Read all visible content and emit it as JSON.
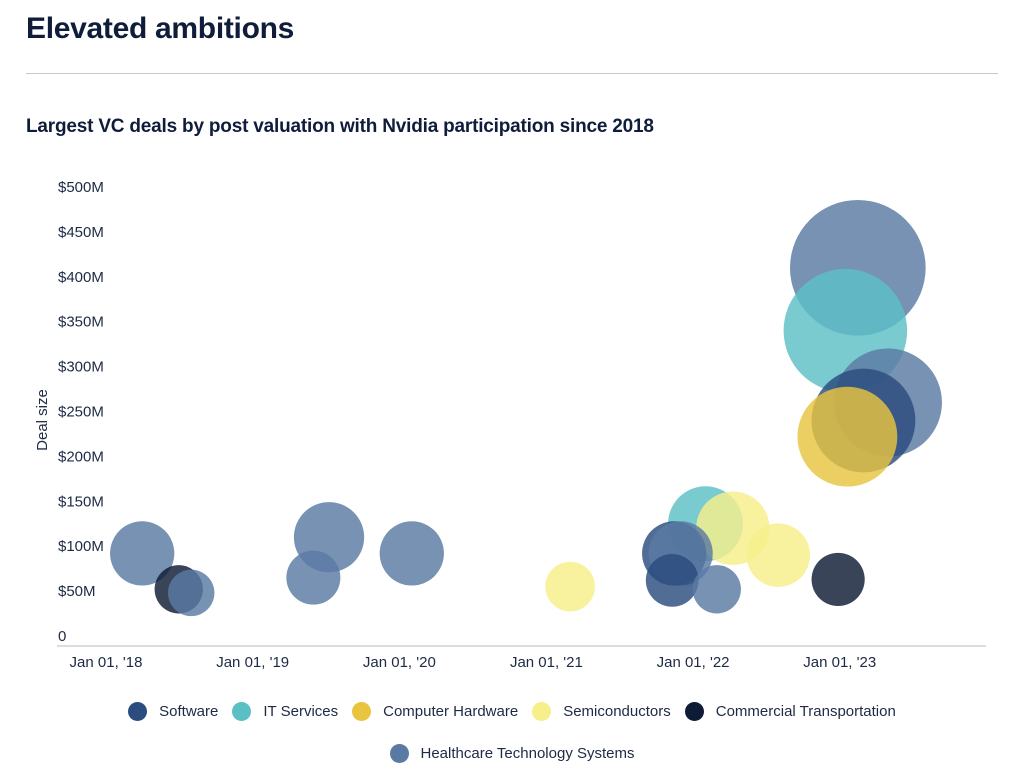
{
  "header": {
    "title": "Elevated ambitions"
  },
  "chart_data": {
    "type": "scatter",
    "subtitle": "Largest VC deals by post valuation with Nvidia participation since 2018",
    "ylabel": "Deal size",
    "xlabel": "",
    "ylim": [
      0,
      500
    ],
    "y_ticks": [
      {
        "value": 0,
        "label": "0"
      },
      {
        "value": 50,
        "label": "$50M"
      },
      {
        "value": 100,
        "label": "$100M"
      },
      {
        "value": 150,
        "label": "$150M"
      },
      {
        "value": 200,
        "label": "$200M"
      },
      {
        "value": 250,
        "label": "$250M"
      },
      {
        "value": 300,
        "label": "$300M"
      },
      {
        "value": 350,
        "label": "$350M"
      },
      {
        "value": 400,
        "label": "$400M"
      },
      {
        "value": 450,
        "label": "$450M"
      },
      {
        "value": 500,
        "label": "$500M"
      }
    ],
    "x_range": [
      "2017-09-01",
      "2023-12-31"
    ],
    "x_ticks": [
      {
        "value": "2018-01-01",
        "label": "Jan 01, '18"
      },
      {
        "value": "2019-01-01",
        "label": "Jan 01, '19"
      },
      {
        "value": "2020-01-01",
        "label": "Jan 01, '20"
      },
      {
        "value": "2021-01-01",
        "label": "Jan 01, '21"
      },
      {
        "value": "2022-01-01",
        "label": "Jan 01, '22"
      },
      {
        "value": "2023-01-01",
        "label": "Jan 01, '23"
      }
    ],
    "grid": false,
    "legend_position": "bottom",
    "series": [
      {
        "name": "Software",
        "color": "#2b4c7e",
        "points": [
          {
            "x": "2021-11-15",
            "y": 92
          },
          {
            "x": "2021-11-10",
            "y": 62
          },
          {
            "x": "2023-03-01",
            "y": 240
          }
        ]
      },
      {
        "name": "IT Services",
        "color": "#5bc0c6",
        "points": [
          {
            "x": "2022-02-01",
            "y": 125
          },
          {
            "x": "2023-01-15",
            "y": 340
          }
        ]
      },
      {
        "name": "Computer Hardware",
        "color": "#e8c43f",
        "points": [
          {
            "x": "2023-01-20",
            "y": 222
          }
        ]
      },
      {
        "name": "Semiconductors",
        "color": "#f6ef8a",
        "points": [
          {
            "x": "2021-03-01",
            "y": 55
          },
          {
            "x": "2022-04-10",
            "y": 120
          },
          {
            "x": "2022-08-01",
            "y": 90
          }
        ]
      },
      {
        "name": "Commercial Transportation",
        "color": "#0e1b35",
        "points": [
          {
            "x": "2018-07-01",
            "y": 52
          },
          {
            "x": "2022-12-28",
            "y": 63
          }
        ]
      },
      {
        "name": "Healthcare Technology Systems",
        "color": "#5a7aa3",
        "points": [
          {
            "x": "2018-04-01",
            "y": 92
          },
          {
            "x": "2018-08-01",
            "y": 48
          },
          {
            "x": "2019-06-01",
            "y": 65
          },
          {
            "x": "2019-07-10",
            "y": 110
          },
          {
            "x": "2020-02-01",
            "y": 92
          },
          {
            "x": "2021-12-01",
            "y": 92
          },
          {
            "x": "2022-03-01",
            "y": 52
          },
          {
            "x": "2023-02-15",
            "y": 410
          },
          {
            "x": "2023-05-01",
            "y": 260
          }
        ]
      }
    ]
  }
}
